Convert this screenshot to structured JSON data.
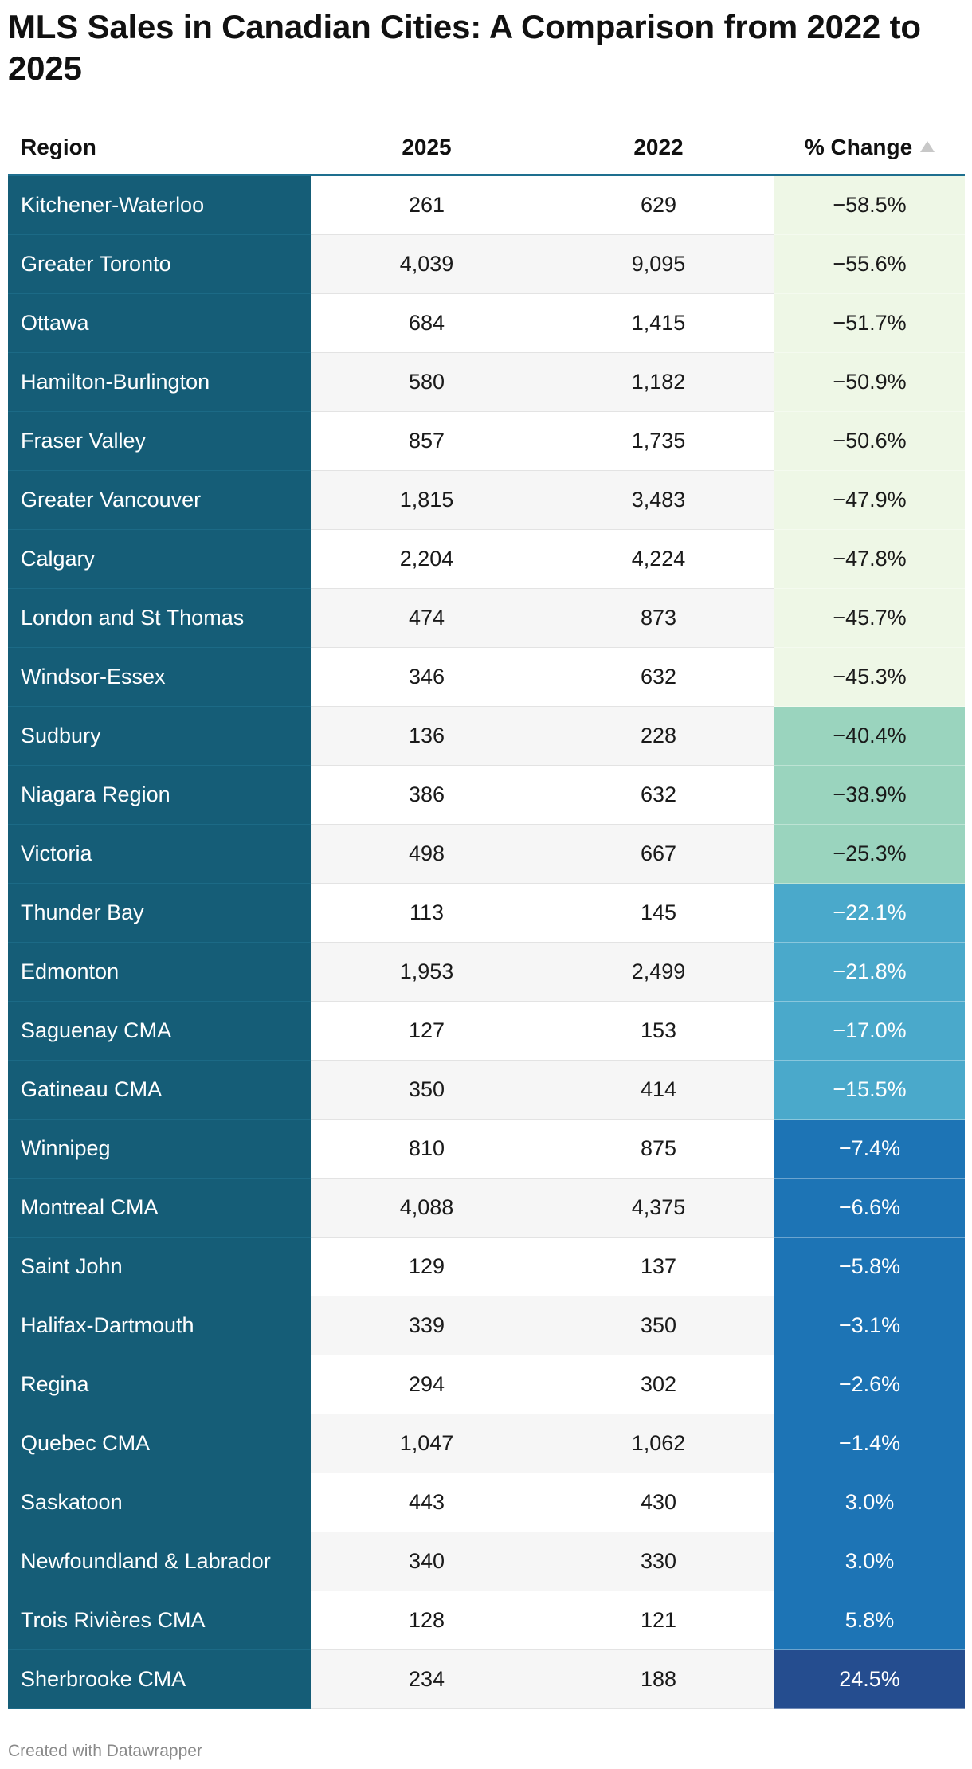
{
  "chart_data": {
    "type": "table",
    "title": "MLS Sales in Canadian Cities: A Comparison from 2022 to 2025",
    "columns": [
      "Region",
      "2025",
      "2022",
      "% Change"
    ],
    "sort": {
      "column": "% Change",
      "direction": "ascending"
    },
    "rows": [
      {
        "region": "Kitchener-Waterloo",
        "y2025": "261",
        "y2022": "629",
        "change": "−58.5%",
        "value": -58.5
      },
      {
        "region": "Greater Toronto",
        "y2025": "4,039",
        "y2022": "9,095",
        "change": "−55.6%",
        "value": -55.6
      },
      {
        "region": "Ottawa",
        "y2025": "684",
        "y2022": "1,415",
        "change": "−51.7%",
        "value": -51.7
      },
      {
        "region": "Hamilton-Burlington",
        "y2025": "580",
        "y2022": "1,182",
        "change": "−50.9%",
        "value": -50.9
      },
      {
        "region": "Fraser Valley",
        "y2025": "857",
        "y2022": "1,735",
        "change": "−50.6%",
        "value": -50.6
      },
      {
        "region": "Greater Vancouver",
        "y2025": "1,815",
        "y2022": "3,483",
        "change": "−47.9%",
        "value": -47.9
      },
      {
        "region": "Calgary",
        "y2025": "2,204",
        "y2022": "4,224",
        "change": "−47.8%",
        "value": -47.8
      },
      {
        "region": "London and St Thomas",
        "y2025": "474",
        "y2022": "873",
        "change": "−45.7%",
        "value": -45.7
      },
      {
        "region": "Windsor-Essex",
        "y2025": "346",
        "y2022": "632",
        "change": "−45.3%",
        "value": -45.3
      },
      {
        "region": "Sudbury",
        "y2025": "136",
        "y2022": "228",
        "change": "−40.4%",
        "value": -40.4
      },
      {
        "region": "Niagara Region",
        "y2025": "386",
        "y2022": "632",
        "change": "−38.9%",
        "value": -38.9
      },
      {
        "region": "Victoria",
        "y2025": "498",
        "y2022": "667",
        "change": "−25.3%",
        "value": -25.3
      },
      {
        "region": "Thunder Bay",
        "y2025": "113",
        "y2022": "145",
        "change": "−22.1%",
        "value": -22.1
      },
      {
        "region": "Edmonton",
        "y2025": "1,953",
        "y2022": "2,499",
        "change": "−21.8%",
        "value": -21.8
      },
      {
        "region": "Saguenay CMA",
        "y2025": "127",
        "y2022": "153",
        "change": "−17.0%",
        "value": -17.0
      },
      {
        "region": "Gatineau CMA",
        "y2025": "350",
        "y2022": "414",
        "change": "−15.5%",
        "value": -15.5
      },
      {
        "region": "Winnipeg",
        "y2025": "810",
        "y2022": "875",
        "change": "−7.4%",
        "value": -7.4
      },
      {
        "region": "Montreal CMA",
        "y2025": "4,088",
        "y2022": "4,375",
        "change": "−6.6%",
        "value": -6.6
      },
      {
        "region": "Saint John",
        "y2025": "129",
        "y2022": "137",
        "change": "−5.8%",
        "value": -5.8
      },
      {
        "region": "Halifax-Dartmouth",
        "y2025": "339",
        "y2022": "350",
        "change": "−3.1%",
        "value": -3.1
      },
      {
        "region": "Regina",
        "y2025": "294",
        "y2022": "302",
        "change": "−2.6%",
        "value": -2.6
      },
      {
        "region": "Quebec CMA",
        "y2025": "1,047",
        "y2022": "1,062",
        "change": "−1.4%",
        "value": -1.4
      },
      {
        "region": "Saskatoon",
        "y2025": "443",
        "y2022": "430",
        "change": "3.0%",
        "value": 3.0
      },
      {
        "region": "Newfoundland & Labrador",
        "y2025": "340",
        "y2022": "330",
        "change": "3.0%",
        "value": 3.0
      },
      {
        "region": "Trois Rivières CMA",
        "y2025": "128",
        "y2022": "121",
        "change": "5.8%",
        "value": 5.8
      },
      {
        "region": "Sherbrooke CMA",
        "y2025": "234",
        "y2022": "188",
        "change": "24.5%",
        "value": 24.5
      }
    ],
    "color_scale": [
      {
        "max": -45,
        "color": "#eef7e6",
        "text": "#1a1a1a"
      },
      {
        "max": -25,
        "color": "#9ad4be",
        "text": "#1a1a1a"
      },
      {
        "max": -10,
        "color": "#4aa9cb",
        "text": "#ffffff"
      },
      {
        "max": 10,
        "color": "#1d74b5",
        "text": "#ffffff"
      },
      {
        "max": 100,
        "color": "#254d8f",
        "text": "#ffffff"
      }
    ],
    "region_column_color": "#155d77"
  },
  "footer": {
    "credit": "Created with Datawrapper"
  }
}
